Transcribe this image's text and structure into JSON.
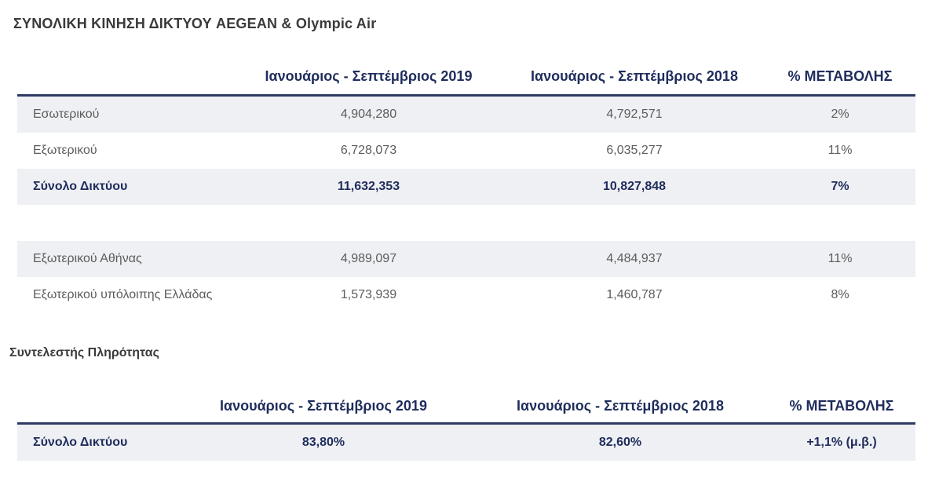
{
  "section1": {
    "title": "ΣΥΝΟΛΙΚΗ ΚΙΝΗΣΗ ΔΙΚΤΥΟΥ AEGEAN & Olympic Air",
    "headers": [
      "",
      "Ιανουάριος - Σεπτέμβριος 2019",
      "Ιανουάριος - Σεπτέμβριος 2018",
      "% ΜΕΤΑΒΟΛΗΣ"
    ],
    "rows": [
      {
        "label": "Εσωτερικού",
        "y2019": "4,904,280",
        "y2018": "4,792,571",
        "change": "2%"
      },
      {
        "label": "Εξωτερικού",
        "y2019": "6,728,073",
        "y2018": "6,035,277",
        "change": "11%"
      },
      {
        "label": "Σύνολο Δικτύου",
        "y2019": "11,632,353",
        "y2018": "10,827,848",
        "change": "7%"
      },
      {
        "label": "Εξωτερικού Αθήνας",
        "y2019": "4,989,097",
        "y2018": "4,484,937",
        "change": "11%"
      },
      {
        "label": "Εξωτερικού υπόλοιπης Ελλάδας",
        "y2019": "1,573,939",
        "y2018": "1,460,787",
        "change": "8%"
      }
    ]
  },
  "section2": {
    "title": "Συντελεστής Πληρότητας",
    "headers": [
      "",
      "Ιανουάριος - Σεπτέμβριος 2019",
      "Ιανουάριος - Σεπτέμβριος 2018",
      "% ΜΕΤΑΒΟΛΗΣ"
    ],
    "rows": [
      {
        "label": "Σύνολο Δικτύου",
        "y2019": "83,80%",
        "y2018": "82,60%",
        "change": "+1,1% (μ.β.)"
      }
    ]
  },
  "colors": {
    "header_text": "#1f2d5c",
    "header_rule": "#2e3a63",
    "row_shade": "#eff0f4"
  }
}
